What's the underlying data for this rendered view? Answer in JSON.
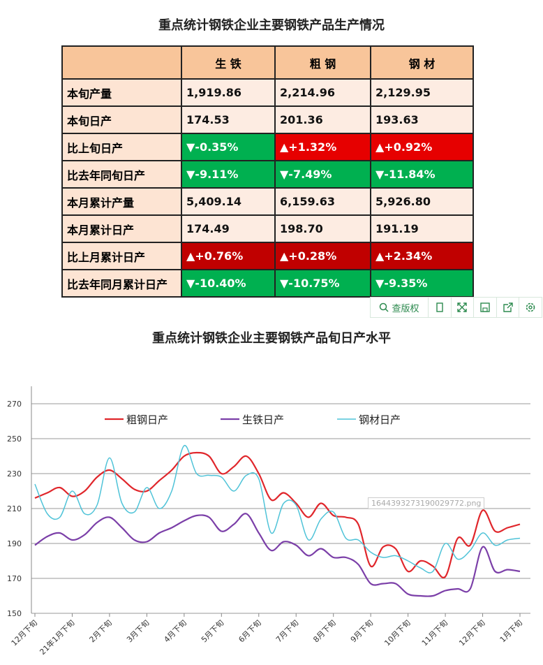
{
  "table": {
    "title": "重点统计钢铁企业主要钢铁产品生产情况",
    "header": [
      "生 铁",
      "粗 钢",
      "钢 材"
    ],
    "rows": [
      {
        "label": "本旬产量",
        "cells": [
          "1,919.86",
          "2,214.96",
          "2,129.95"
        ],
        "colors": [
          "#fdece2",
          "#fdece2",
          "#fdece2"
        ]
      },
      {
        "label": "本旬日产",
        "cells": [
          "174.53",
          "201.36",
          "193.63"
        ],
        "colors": [
          "#fdece2",
          "#fdece2",
          "#fdece2"
        ]
      },
      {
        "label": "比上旬日产",
        "cells": [
          "▼-0.35%",
          "▲+1.32%",
          "▲+0.92%"
        ],
        "colors": [
          "#00b050",
          "#e60000",
          "#e60000"
        ]
      },
      {
        "label": "比去年同旬日产",
        "cells": [
          "▼-9.11%",
          "▼-7.49%",
          "▼-11.84%"
        ],
        "colors": [
          "#00b050",
          "#00b050",
          "#00b050"
        ]
      },
      {
        "label": "本月累计产量",
        "cells": [
          "5,409.14",
          "6,159.63",
          "5,926.80"
        ],
        "colors": [
          "#fdece2",
          "#fdece2",
          "#fdece2"
        ]
      },
      {
        "label": "本月累计日产",
        "cells": [
          "174.49",
          "198.70",
          "191.19"
        ],
        "colors": [
          "#fdece2",
          "#fdece2",
          "#fdece2"
        ]
      },
      {
        "label": "比上月累计日产",
        "cells": [
          "▲+0.76%",
          "▲+0.28%",
          "▲+2.34%"
        ],
        "colors": [
          "#c00000",
          "#c00000",
          "#c00000"
        ]
      },
      {
        "label": "比去年同月累计日产",
        "cells": [
          "▼-10.40%",
          "▼-10.75%",
          "▼-9.35%"
        ],
        "colors": [
          "#00b050",
          "#00b050",
          "#00b050"
        ]
      }
    ]
  },
  "toolbar": {
    "label": "查版权"
  },
  "watermark": "1644393273190029772.png",
  "chart_data": {
    "type": "line",
    "title": "重点统计钢铁企业主要钢铁产品旬日产水平",
    "categories": [
      "12月下旬",
      null,
      null,
      "21年1月下旬",
      null,
      null,
      "2月下旬",
      null,
      null,
      "3月下旬",
      null,
      null,
      "4月下旬",
      null,
      null,
      "5月下旬",
      null,
      null,
      "6月下旬",
      null,
      null,
      "7月下旬",
      null,
      null,
      "8月下旬",
      null,
      null,
      "9月下旬",
      null,
      null,
      "10月下旬",
      null,
      null,
      "11月下旬",
      null,
      null,
      "12月下旬",
      null,
      null,
      "1月下旬"
    ],
    "series": [
      {
        "name": "粗钢日产",
        "color": "#e0262b",
        "values": [
          216,
          219,
          222,
          217,
          220,
          228,
          232,
          227,
          221,
          220,
          226,
          232,
          240,
          242,
          240,
          230,
          234,
          240,
          230,
          215,
          219,
          213,
          205,
          213,
          206,
          205,
          201,
          177,
          188,
          187,
          174,
          180,
          177,
          171,
          193,
          189,
          209,
          197,
          199,
          201
        ]
      },
      {
        "name": "生铁日产",
        "color": "#7b3fa8",
        "values": [
          189,
          194,
          196,
          192,
          195,
          202,
          205,
          199,
          192,
          191,
          196,
          199,
          203,
          206,
          205,
          197,
          201,
          207,
          196,
          186,
          191,
          189,
          183,
          187,
          182,
          182,
          178,
          167,
          167,
          167,
          161,
          160,
          160,
          163,
          164,
          164,
          188,
          174,
          175,
          174
        ]
      },
      {
        "name": "钢材日产",
        "color": "#4fc3d8",
        "values": [
          224,
          207,
          205,
          220,
          207,
          212,
          239,
          213,
          208,
          222,
          210,
          220,
          246,
          230,
          229,
          228,
          220,
          229,
          227,
          196,
          213,
          212,
          192,
          204,
          208,
          193,
          192,
          185,
          182,
          183,
          180,
          176,
          174,
          190,
          181,
          186,
          196,
          189,
          192,
          193
        ]
      }
    ],
    "ylim": [
      150,
      280
    ],
    "yticks": [
      150,
      170,
      190,
      210,
      230,
      250,
      270
    ],
    "grid": true
  }
}
